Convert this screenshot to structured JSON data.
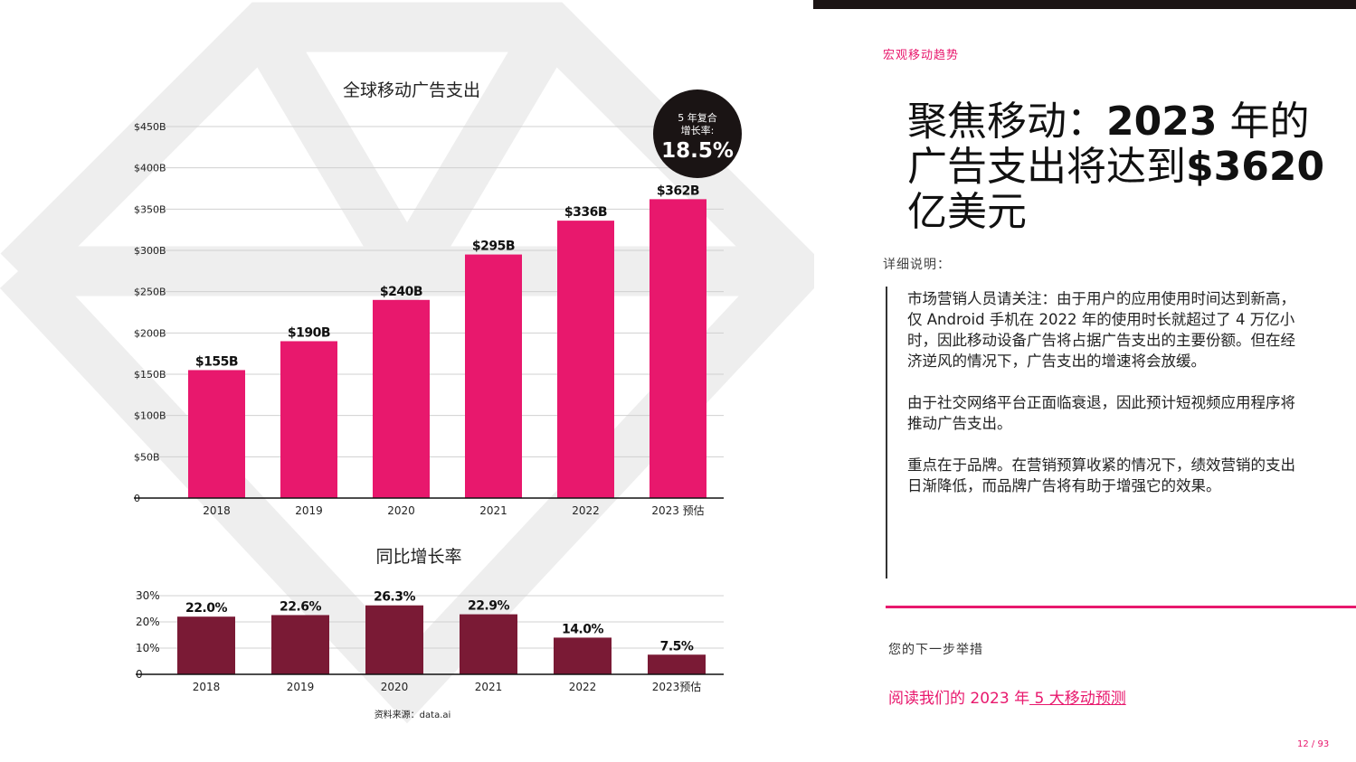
{
  "colors": {
    "accent": "#e8186d",
    "bar_pink": "#e8186d",
    "bar_dark": "#7a1a35",
    "badge_bg": "#1a1414"
  },
  "section_label": "宏观移动趋势",
  "headline": {
    "part1": "聚焦移动：",
    "bold1": "2023",
    "part2": " 年的广告支出将达到",
    "bold2": "$3620",
    "part3": " 亿美元"
  },
  "details_label": "详细说明：",
  "body_paragraphs": [
    "市场营销人员请关注：由于用户的应用使用时间达到新高，仅 Android 手机在 2022 年的使用时长就超过了 4 万亿小时，因此移动设备广告将占据广告支出的主要份额。但在经济逆风的情况下，广告支出的增速将会放缓。",
    "由于社交网络平台正面临衰退，因此预计短视频应用程序将推动广告支出。",
    "重点在于品牌。在营销预算收紧的情况下，绩效营销的支出日渐降低，而品牌广告将有助于增强它的效果。"
  ],
  "next_label": "您的下一步举措",
  "read_link": {
    "prefix": "阅读我们的 2023 年",
    "linked": " 5 大移动预测"
  },
  "page_number": "12 / 93",
  "source": "资料来源：data.ai",
  "badge": {
    "line1": "5 年复合",
    "line2": "增长率:",
    "value": "18.5%"
  },
  "chart_data": [
    {
      "type": "bar",
      "title": "全球移动广告支出",
      "categories": [
        "2018",
        "2019",
        "2020",
        "2021",
        "2022",
        "2023 预估"
      ],
      "values": [
        155,
        190,
        240,
        295,
        336,
        362
      ],
      "value_labels": [
        "$155B",
        "$190B",
        "$240B",
        "$295B",
        "$336B",
        "$362B"
      ],
      "yticks": [
        0,
        50,
        100,
        150,
        200,
        250,
        300,
        350,
        400,
        450
      ],
      "ytick_labels": [
        "0",
        "$50B",
        "$100B",
        "$150B",
        "$200B",
        "$250B",
        "$300B",
        "$350B",
        "$400B",
        "$450B"
      ],
      "ylim": [
        0,
        450
      ],
      "grid": true
    },
    {
      "type": "bar",
      "title": "同比增长率",
      "categories": [
        "2018",
        "2019",
        "2020",
        "2021",
        "2022",
        "2023预估"
      ],
      "values": [
        22.0,
        22.6,
        26.3,
        22.9,
        14.0,
        7.5
      ],
      "value_labels": [
        "22.0%",
        "22.6%",
        "26.3%",
        "22.9%",
        "14.0%",
        "7.5%"
      ],
      "yticks": [
        0,
        10,
        20,
        30
      ],
      "ytick_labels": [
        "0",
        "10%",
        "20%",
        "30%"
      ],
      "ylim": [
        0,
        30
      ],
      "grid": true
    }
  ]
}
